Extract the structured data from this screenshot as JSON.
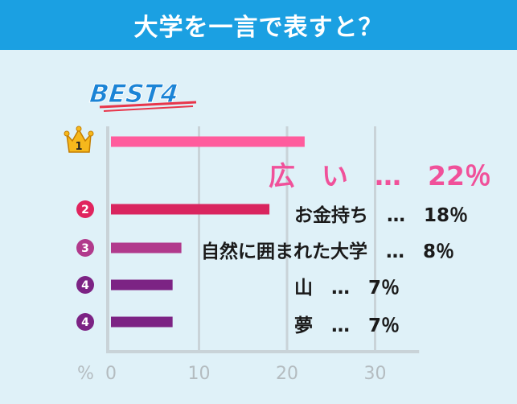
{
  "header": {
    "title": "大学を一言で表すと？"
  },
  "badge": {
    "text": "BEST4"
  },
  "chart_data": {
    "type": "bar",
    "orientation": "horizontal",
    "title": "大学を一言で表すと？",
    "xlabel": "%",
    "xlim": [
      0,
      35
    ],
    "xticks": [
      0,
      10,
      20,
      30
    ],
    "grid": true,
    "categories": [
      "広い",
      "お金持ち",
      "自然に囲まれた大学",
      "山",
      "夢"
    ],
    "ranks": [
      "1",
      "2",
      "3",
      "4",
      "4"
    ],
    "values": [
      22,
      18,
      8,
      7,
      7
    ],
    "labels": [
      "広　い　…　22％",
      "お金持ち　…　18％",
      "自然に囲まれた大学　…　8％",
      "山　…　7％",
      "夢　…　7％"
    ],
    "colors": {
      "bars": [
        "#ff5c9d",
        "#d9255f",
        "#b13a8c",
        "#7c2384",
        "#7c2384"
      ],
      "rank_circles": [
        "#e0245e",
        "#b13a8c",
        "#7c2384",
        "#7c2384"
      ],
      "highlight_text": "#f0519a",
      "crown": "#f6b81c",
      "header": "#1ba0e2",
      "background": "#dff1f8"
    }
  }
}
